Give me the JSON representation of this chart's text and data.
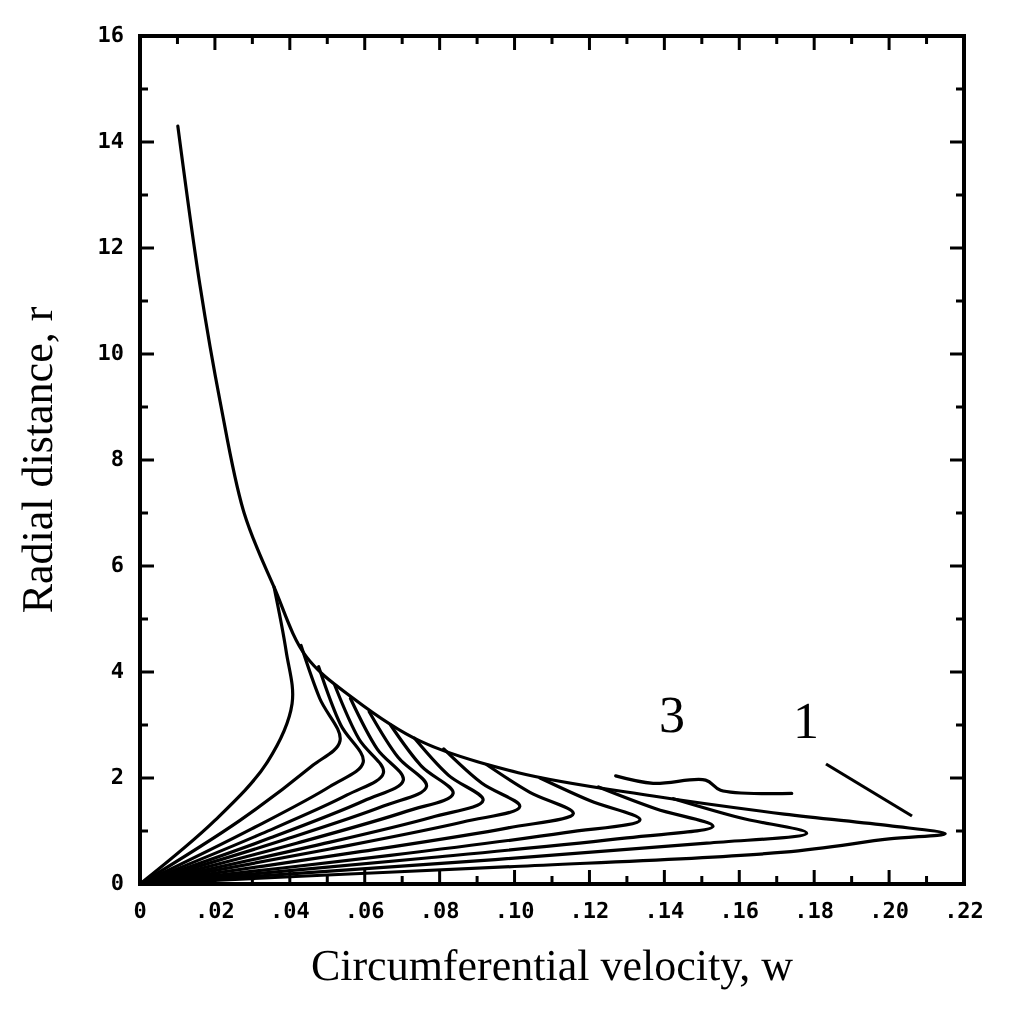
{
  "chart_data": {
    "type": "line",
    "xlabel": "Circumferential velocity, w",
    "ylabel": "Radial distance, r",
    "xlim": [
      0,
      0.22
    ],
    "ylim": [
      0,
      16
    ],
    "xticks": [
      {
        "value": 0,
        "label": "0"
      },
      {
        "value": 0.01,
        "label": null
      },
      {
        "value": 0.02,
        "label": ".02"
      },
      {
        "value": 0.03,
        "label": null
      },
      {
        "value": 0.04,
        "label": ".04"
      },
      {
        "value": 0.05,
        "label": null
      },
      {
        "value": 0.06,
        "label": ".06"
      },
      {
        "value": 0.07,
        "label": null
      },
      {
        "value": 0.08,
        "label": ".08"
      },
      {
        "value": 0.09,
        "label": null
      },
      {
        "value": 0.1,
        "label": ".10"
      },
      {
        "value": 0.11,
        "label": null
      },
      {
        "value": 0.12,
        "label": ".12"
      },
      {
        "value": 0.13,
        "label": null
      },
      {
        "value": 0.14,
        "label": ".14"
      },
      {
        "value": 0.15,
        "label": null
      },
      {
        "value": 0.16,
        "label": ".16"
      },
      {
        "value": 0.17,
        "label": null
      },
      {
        "value": 0.18,
        "label": ".18"
      },
      {
        "value": 0.19,
        "label": null
      },
      {
        "value": 0.2,
        "label": ".20"
      },
      {
        "value": 0.21,
        "label": null
      },
      {
        "value": 0.22,
        "label": ".22"
      }
    ],
    "yticks": [
      0,
      {
        "value": 1,
        "label": null
      },
      2,
      {
        "value": 3,
        "label": null
      },
      4,
      {
        "value": 5,
        "label": null
      },
      6,
      {
        "value": 7,
        "label": null
      },
      8,
      {
        "value": 9,
        "label": null
      },
      10,
      {
        "value": 11,
        "label": null
      },
      12,
      {
        "value": 13,
        "label": null
      },
      14,
      {
        "value": 15,
        "label": null
      },
      16
    ],
    "grid": false,
    "marker": "none",
    "line_style": "solid",
    "annotations": [
      "3",
      "1"
    ],
    "series": [
      {
        "color": "#000000",
        "x": [
          0.0101,
          0.016,
          0.0214,
          0.0278,
          0.0358,
          0.0443,
          0.057,
          0.0747,
          0.101,
          0.137,
          0.172,
          0.2,
          0.215,
          0.2,
          0.172,
          0.1,
          0.05,
          0
        ],
        "values": [
          14.3,
          11.3,
          9.1,
          7.0,
          5.6,
          4.3,
          3.5,
          2.7,
          2.1,
          1.66,
          1.32,
          1.1,
          0.95,
          0.85,
          0.6,
          0.33,
          0.17,
          0
        ]
      },
      {
        "color": "#000000",
        "x": [
          0,
          0.02,
          0.034,
          0.0406,
          0.039,
          0.0358
        ],
        "values": [
          0,
          1.2,
          2.3,
          3.4,
          4.4,
          5.6
        ]
      },
      {
        "color": "#000000",
        "x": [
          0,
          0.0267,
          0.0454,
          0.0534,
          0.048,
          0.043
        ],
        "values": [
          0,
          1.2,
          2.2,
          2.7,
          3.5,
          4.5
        ]
      },
      {
        "color": "#000000",
        "x": [
          0,
          0.0298,
          0.0507,
          0.0596,
          0.0536,
          0.0477
        ],
        "values": [
          0,
          1.04,
          1.84,
          2.3,
          3.0,
          4.1
        ]
      },
      {
        "color": "#000000",
        "x": [
          0,
          0.0325,
          0.0553,
          0.065,
          0.0585,
          0.052
        ],
        "values": [
          0,
          0.95,
          1.68,
          2.1,
          2.73,
          3.75
        ]
      },
      {
        "color": "#000000",
        "x": [
          0,
          0.0352,
          0.0598,
          0.0703,
          0.0633,
          0.0562
        ],
        "values": [
          0,
          0.88,
          1.57,
          1.96,
          2.55,
          3.5
        ]
      },
      {
        "color": "#000000",
        "x": [
          0,
          0.0383,
          0.065,
          0.0765,
          0.0689,
          0.0612
        ],
        "values": [
          0,
          0.83,
          1.47,
          1.84,
          2.39,
          3.25
        ]
      },
      {
        "color": "#000000",
        "x": [
          0,
          0.0418,
          0.0711,
          0.0836,
          0.0752,
          0.0669
        ],
        "values": [
          0,
          0.77,
          1.37,
          1.71,
          2.22,
          3.0
        ]
      },
      {
        "color": "#000000",
        "x": [
          0,
          0.0458,
          0.0779,
          0.0916,
          0.0824,
          0.0733
        ],
        "values": [
          0,
          0.71,
          1.26,
          1.58,
          2.05,
          2.75
        ]
      },
      {
        "color": "#000000",
        "x": [
          0,
          0.0507,
          0.0862,
          0.1014,
          0.0913,
          0.0811
        ],
        "values": [
          0,
          0.66,
          1.17,
          1.46,
          1.9,
          2.55
        ]
      },
      {
        "color": "#000000",
        "x": [
          0,
          0.0579,
          0.0983,
          0.1157,
          0.1041,
          0.0926
        ],
        "values": [
          0,
          0.6,
          1.06,
          1.33,
          1.73,
          2.25
        ]
      },
      {
        "color": "#000000",
        "x": [
          0,
          0.0668,
          0.1135,
          0.1335,
          0.1202,
          0.1068
        ],
        "values": [
          0,
          0.54,
          0.97,
          1.21,
          1.57,
          2.0
        ]
      },
      {
        "color": "#000000",
        "x": [
          0,
          0.0765,
          0.13,
          0.153,
          0.1377,
          0.1224
        ],
        "values": [
          0,
          0.49,
          0.87,
          1.09,
          1.42,
          1.83
        ]
      },
      {
        "color": "#000000",
        "x": [
          0,
          0.089,
          0.1513,
          0.178,
          0.1602,
          0.1424
        ],
        "values": [
          0,
          0.43,
          0.77,
          0.96,
          1.25,
          1.61
        ]
      },
      {
        "color": "#000000",
        "x": [
          0.127,
          0.137,
          0.151,
          0.155,
          0.174
        ],
        "values": [
          2.04,
          1.9,
          1.96,
          1.77,
          1.71
        ]
      }
    ]
  }
}
